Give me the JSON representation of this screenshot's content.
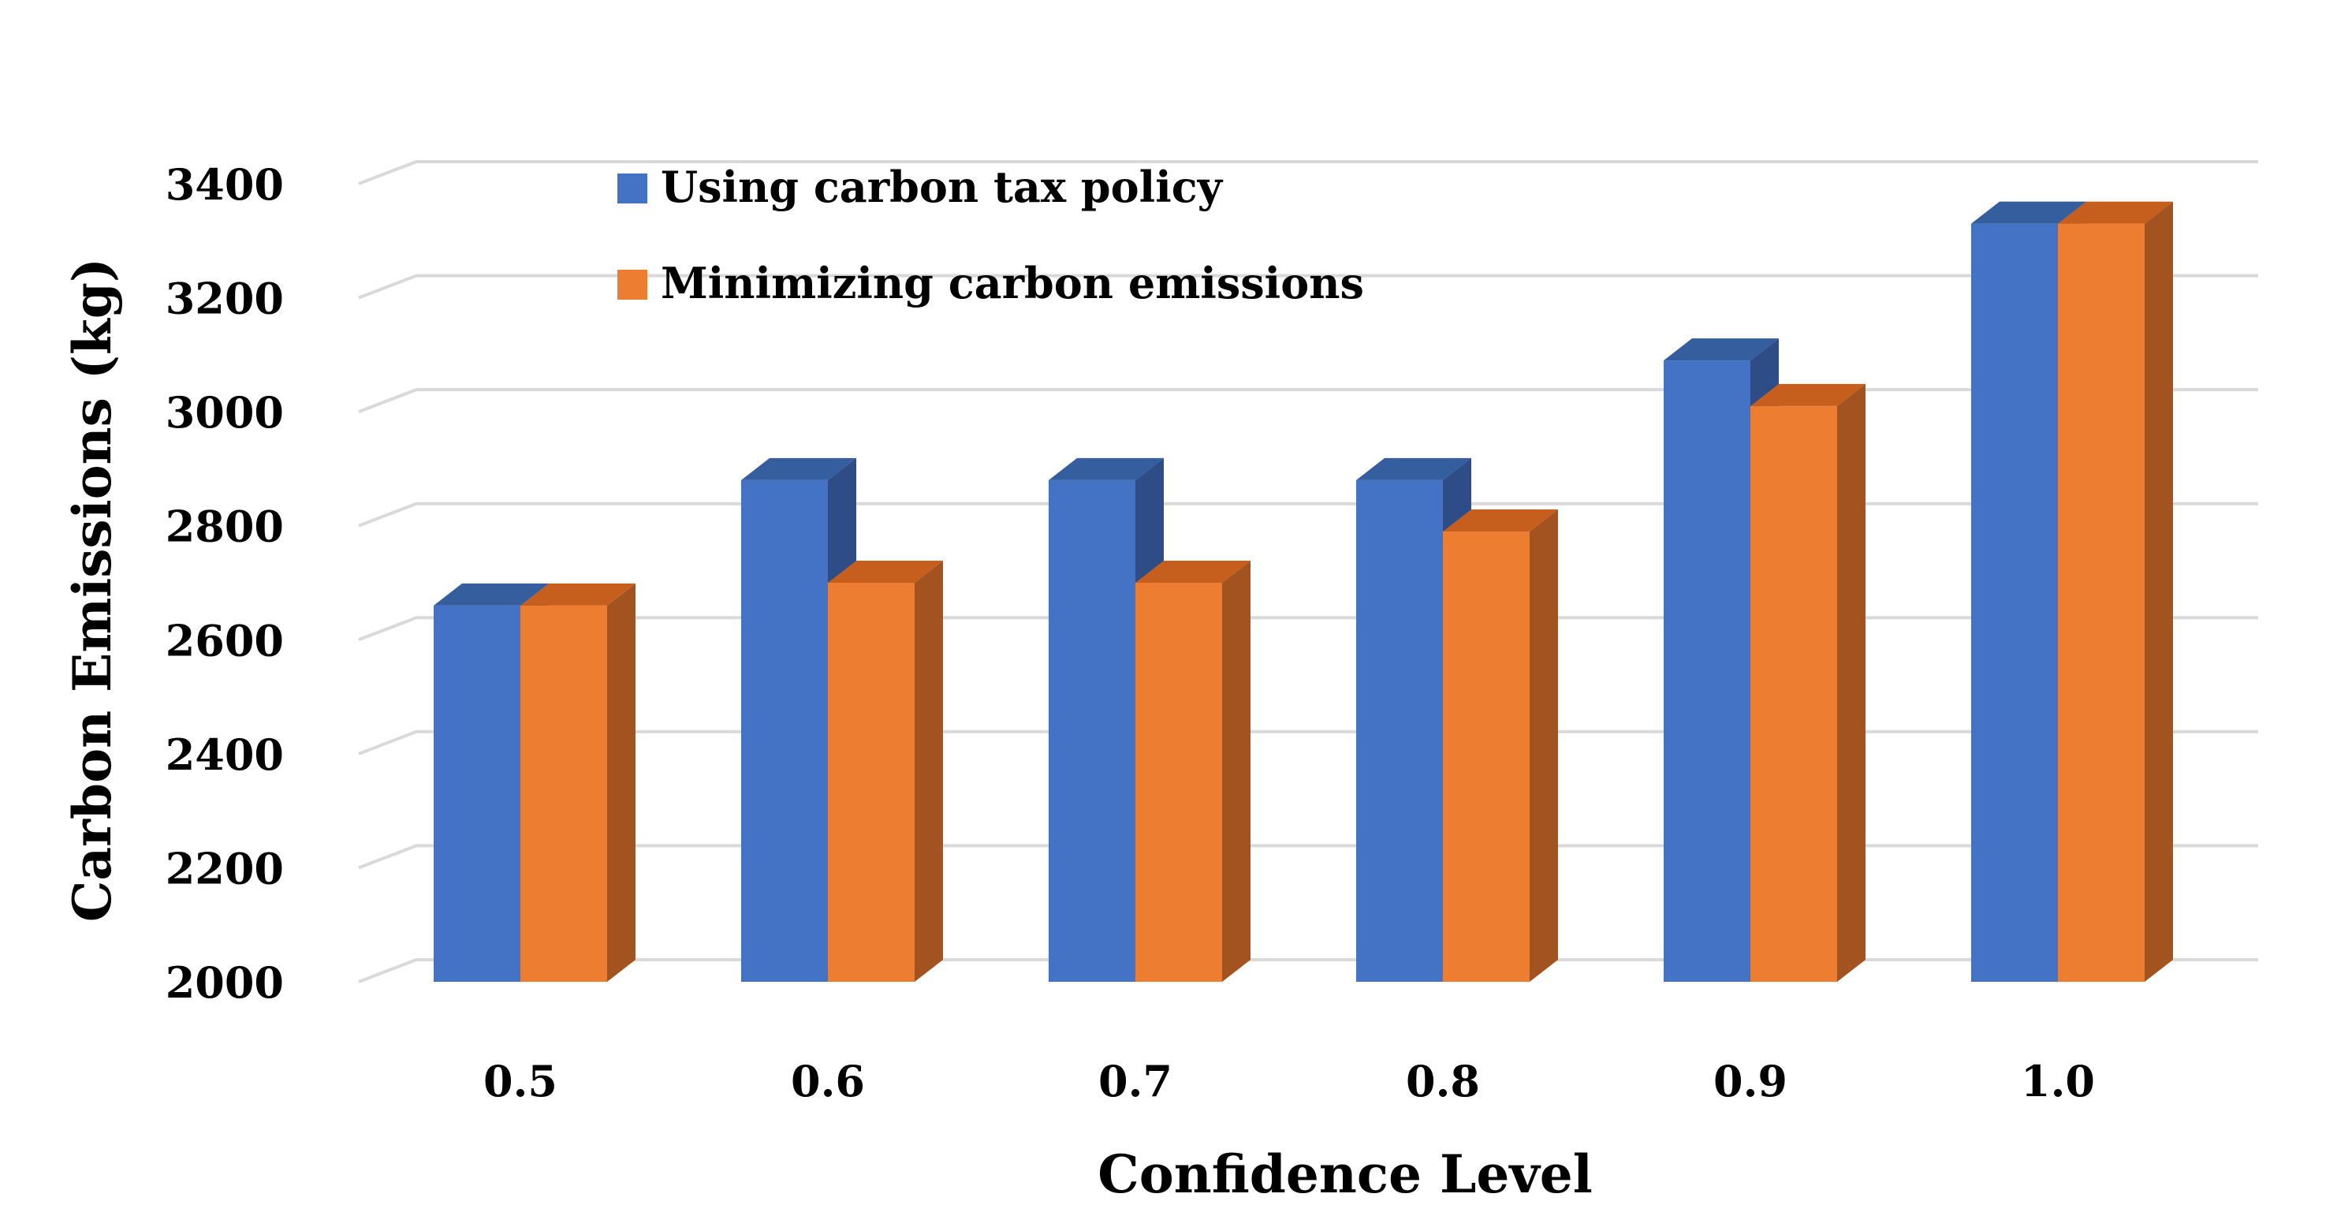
{
  "chart_data": {
    "type": "bar",
    "style": "3d-clustered-column",
    "title": "",
    "xlabel": "Confidence Level",
    "ylabel": "Carbon Emissions (kg)",
    "categories": [
      "0.5",
      "0.6",
      "0.7",
      "0.8",
      "0.9",
      "1.0"
    ],
    "series": [
      {
        "name": "Using carbon tax policy",
        "color": "#4472C4",
        "side_color": "#2E4D87",
        "top_color": "#355E9F",
        "values": [
          2660,
          2880,
          2880,
          2880,
          3090,
          3330
        ]
      },
      {
        "name": "Minimizing carbon emissions",
        "color": "#ED7D31",
        "side_color": "#A3531F",
        "top_color": "#C65F1E",
        "values": [
          2660,
          2700,
          2700,
          2790,
          3010,
          3330
        ]
      }
    ],
    "ylim": [
      2000,
      3400
    ],
    "yticks": [
      "2000",
      "2200",
      "2400",
      "2600",
      "2800",
      "3000",
      "3200",
      "3400"
    ],
    "grid": true,
    "gridline_color": "#D9D9D9",
    "legend_position": "top-left-inside"
  }
}
